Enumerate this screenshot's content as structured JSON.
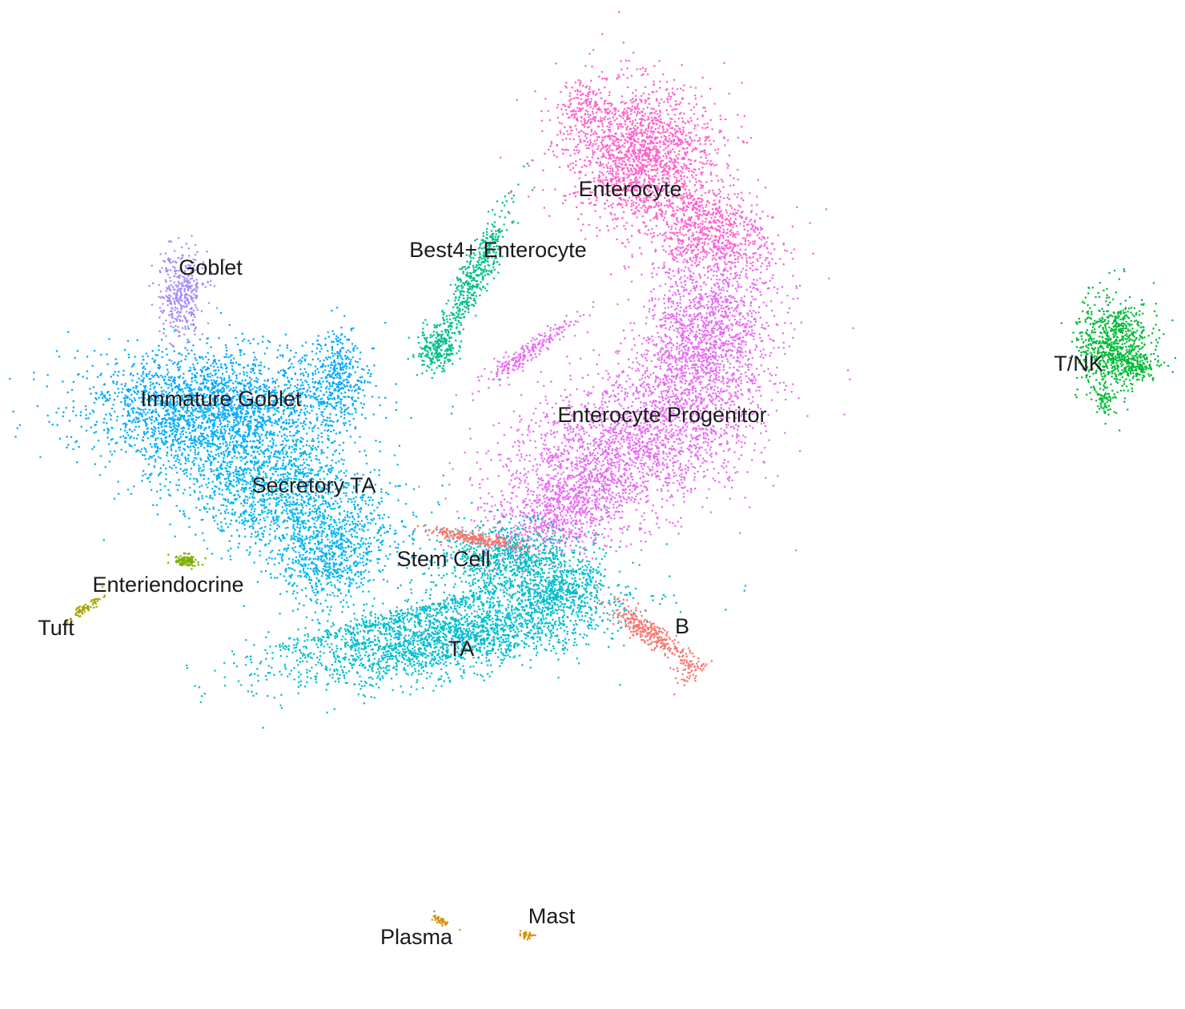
{
  "chart_data": {
    "type": "scatter",
    "title": "",
    "xlabel": "",
    "ylabel": "",
    "axes_visible": false,
    "grid": false,
    "legend": "none",
    "clusters": [
      {
        "name": "Enterocyte",
        "color": "#FF61CC",
        "label_position": [
          787,
          238
        ]
      },
      {
        "name": "Best4+ Enterocyte",
        "color": "#00C08B",
        "label_position": [
          622,
          314
        ]
      },
      {
        "name": "Goblet",
        "color": "#A58AFF",
        "label_position": [
          263,
          336
        ]
      },
      {
        "name": "T/NK",
        "color": "#00BA38",
        "label_position": [
          1347,
          456
        ]
      },
      {
        "name": "Immature Goblet",
        "color": "#00A9FF",
        "label_position": [
          276,
          500
        ]
      },
      {
        "name": "Enterocyte Progenitor",
        "color": "#E76BF3",
        "label_position": [
          827,
          520
        ]
      },
      {
        "name": "Secretory TA",
        "color": "#00B4EF",
        "label_position": [
          392,
          608
        ]
      },
      {
        "name": "Stem Cell",
        "color": "#00BFC4",
        "label_position": [
          554,
          700
        ]
      },
      {
        "name": "Enteriendocrine",
        "color": "#7CAE00",
        "label_position": [
          210,
          732
        ]
      },
      {
        "name": "Tuft",
        "color": "#A3A500",
        "label_position": [
          70,
          786
        ]
      },
      {
        "name": "B",
        "color": "#F8766D",
        "label_position": [
          852,
          784
        ]
      },
      {
        "name": "TA",
        "color": "#00BDD0",
        "label_position": [
          576,
          812
        ]
      },
      {
        "name": "Mast",
        "color": "#D89000",
        "label_position": [
          689,
          1146
        ]
      },
      {
        "name": "Plasma",
        "color": "#D39200",
        "label_position": [
          520,
          1172
        ]
      }
    ]
  }
}
